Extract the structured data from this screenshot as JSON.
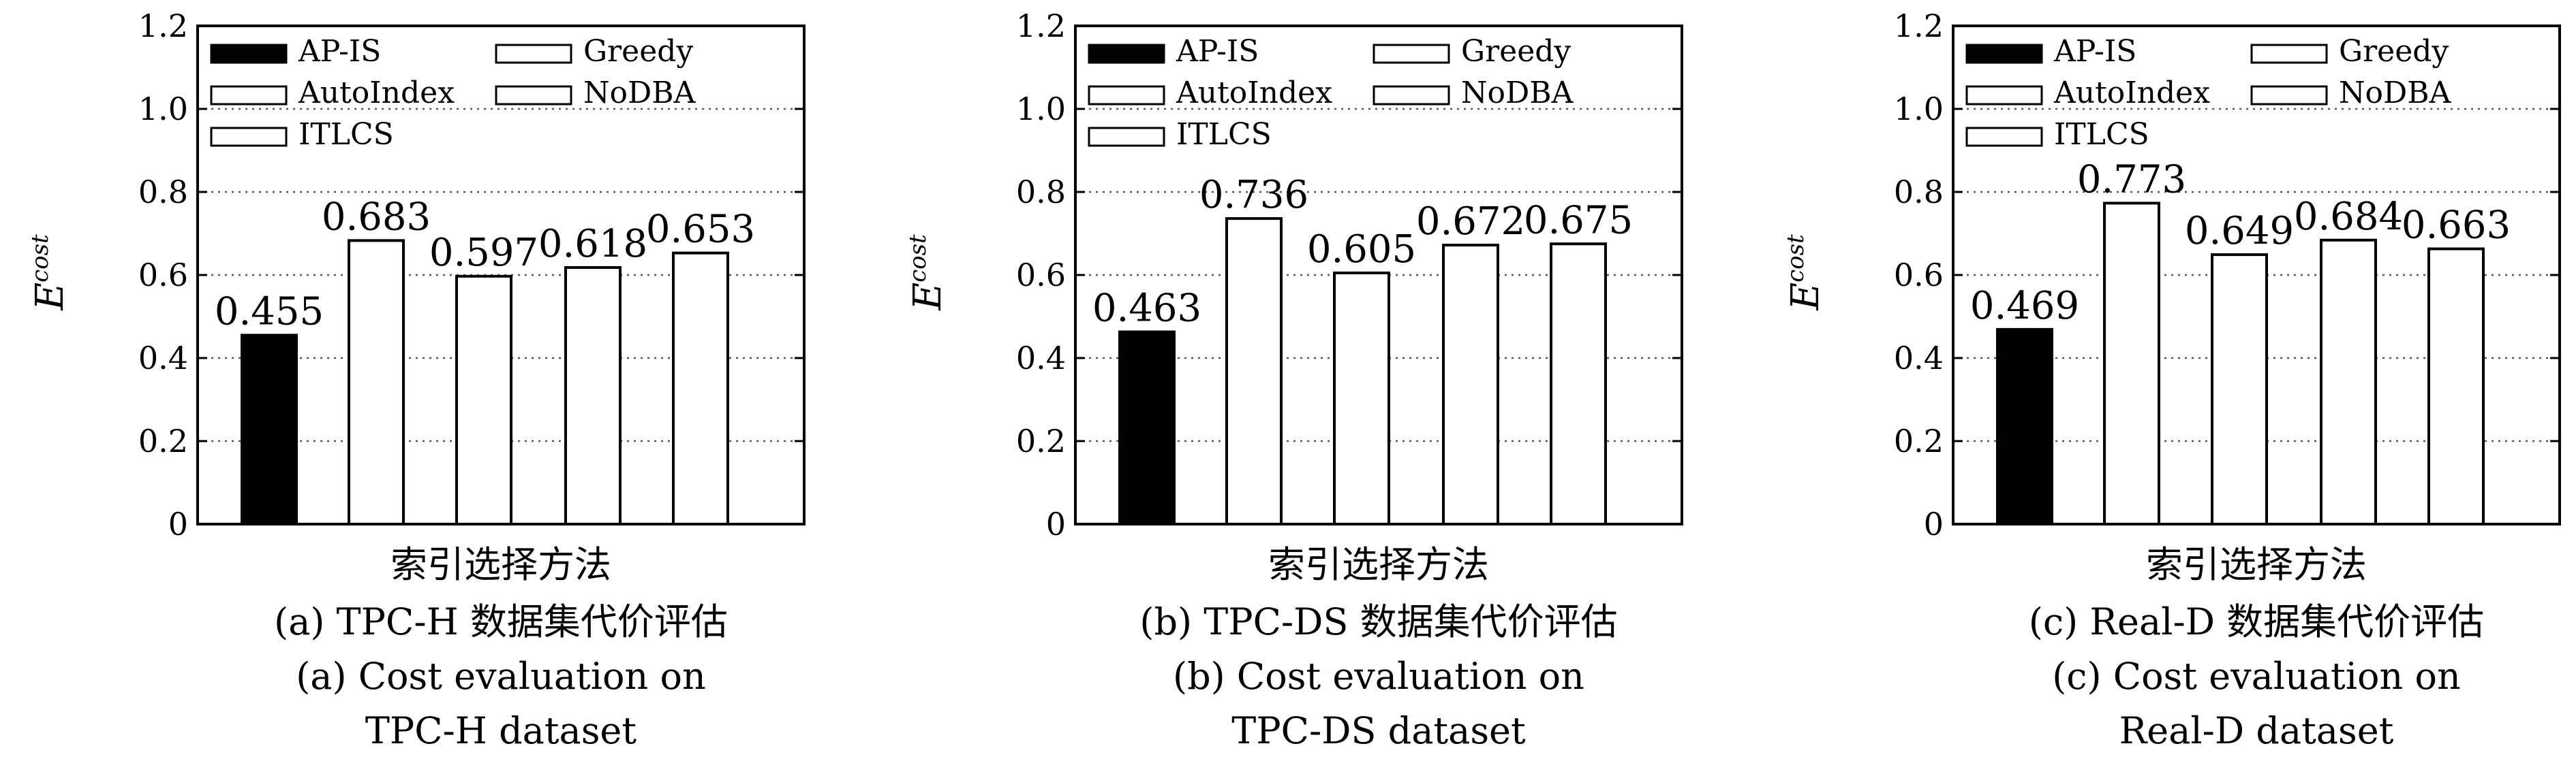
{
  "chart_data": [
    {
      "type": "bar",
      "categories": [
        "AP-IS",
        "AutoIndex",
        "ITLCS",
        "Greedy",
        "NoDBA"
      ],
      "values": [
        0.455,
        0.683,
        0.597,
        0.618,
        0.653
      ],
      "value_labels": [
        "0.455",
        "0.683",
        "0.597",
        "0.618",
        "0.653"
      ],
      "xlabel": "索引选择方法",
      "ylabel": "E",
      "ylabel_sup": "cost",
      "ylim": [
        0,
        1.2
      ],
      "yticks": [
        "0",
        "0.2",
        "0.4",
        "0.6",
        "0.8",
        "1.0",
        "1.2"
      ],
      "grid": "horizontal-dotted",
      "legend_position": "top-left",
      "caption_cn": "(a) TPC-H 数据集代价评估",
      "caption_en_1": "(a) Cost evaluation on",
      "caption_en_2": "TPC-H dataset"
    },
    {
      "type": "bar",
      "categories": [
        "AP-IS",
        "AutoIndex",
        "ITLCS",
        "Greedy",
        "NoDBA"
      ],
      "values": [
        0.463,
        0.736,
        0.605,
        0.672,
        0.675
      ],
      "value_labels": [
        "0.463",
        "0.736",
        "0.605",
        "0.672",
        "0.675"
      ],
      "xlabel": "索引选择方法",
      "ylabel": "E",
      "ylabel_sup": "cost",
      "ylim": [
        0,
        1.2
      ],
      "yticks": [
        "0",
        "0.2",
        "0.4",
        "0.6",
        "0.8",
        "1.0",
        "1.2"
      ],
      "grid": "horizontal-dotted",
      "legend_position": "top-left",
      "caption_cn": "(b) TPC-DS 数据集代价评估",
      "caption_en_1": "(b) Cost evaluation on",
      "caption_en_2": "TPC-DS dataset"
    },
    {
      "type": "bar",
      "categories": [
        "AP-IS",
        "AutoIndex",
        "ITLCS",
        "Greedy",
        "NoDBA"
      ],
      "values": [
        0.469,
        0.773,
        0.649,
        0.684,
        0.663
      ],
      "value_labels": [
        "0.469",
        "0.773",
        "0.649",
        "0.684",
        "0.663"
      ],
      "xlabel": "索引选择方法",
      "ylabel": "E",
      "ylabel_sup": "cost",
      "ylim": [
        0,
        1.2
      ],
      "yticks": [
        "0",
        "0.2",
        "0.4",
        "0.6",
        "0.8",
        "1.0",
        "1.2"
      ],
      "grid": "horizontal-dotted",
      "legend_position": "top-left",
      "caption_cn": "(c) Real-D 数据集代价评估",
      "caption_en_1": "(c) Cost evaluation on",
      "caption_en_2": "Real-D dataset"
    }
  ],
  "colors": {
    "highlight_bar": "#000000",
    "other_bar": "#ffffff",
    "stroke": "#000000",
    "grid": "#555555"
  }
}
